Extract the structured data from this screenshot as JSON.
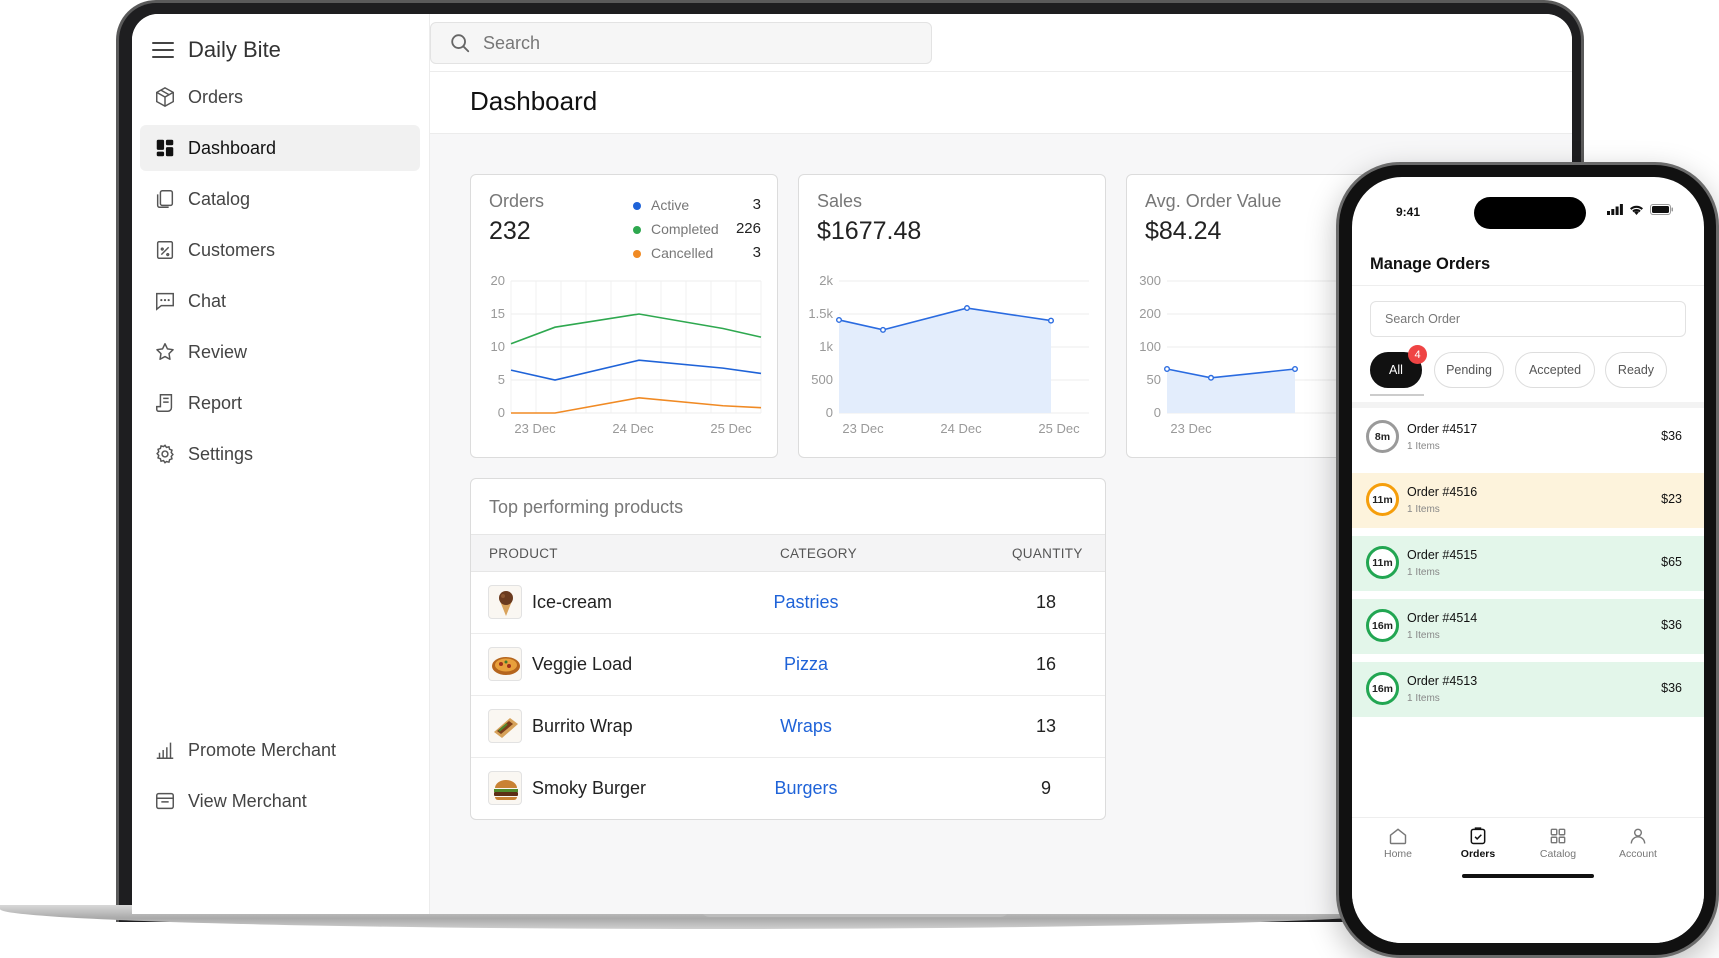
{
  "app": {
    "name": "Daily Bite"
  },
  "search": {
    "placeholder": "Search"
  },
  "sidebar": {
    "items": [
      {
        "label": "Orders",
        "icon": "box-icon"
      },
      {
        "label": "Dashboard",
        "icon": "dashboard-icon",
        "active": true
      },
      {
        "label": "Catalog",
        "icon": "catalog-icon"
      },
      {
        "label": "Customers",
        "icon": "customers-icon"
      },
      {
        "label": "Chat",
        "icon": "chat-icon"
      },
      {
        "label": "Review",
        "icon": "star-icon"
      },
      {
        "label": "Report",
        "icon": "report-icon"
      },
      {
        "label": "Settings",
        "icon": "gear-icon"
      }
    ],
    "footer": [
      {
        "label": "Promote Merchant",
        "icon": "chart-icon"
      },
      {
        "label": "View Merchant",
        "icon": "store-icon"
      }
    ]
  },
  "page": {
    "title": "Dashboard"
  },
  "cards": {
    "orders": {
      "label": "Orders",
      "value": "232",
      "legend": [
        {
          "label": "Active",
          "count": "3",
          "color": "#1f63d8"
        },
        {
          "label": "Completed",
          "count": "226",
          "color": "#2ea84f"
        },
        {
          "label": "Cancelled",
          "count": "3",
          "color": "#f08a24"
        }
      ]
    },
    "sales": {
      "label": "Sales",
      "value": "$1677.48"
    },
    "avg": {
      "label": "Avg. Order Value",
      "value": "$84.24"
    }
  },
  "chart_data": [
    {
      "type": "line",
      "x": [
        "23 Dec",
        "23 Dec",
        "24 Dec",
        "25 Dec",
        "25 Dec"
      ],
      "x_ticks": [
        "23 Dec",
        "24 Dec",
        "25 Dec"
      ],
      "y_ticks": [
        "0",
        "5",
        "10",
        "15",
        "20"
      ],
      "ylim": [
        0,
        20
      ],
      "grid": true,
      "series": [
        {
          "name": "Completed",
          "color": "#2ea84f",
          "values": [
            10.5,
            13,
            15,
            12.8,
            11.5
          ]
        },
        {
          "name": "Active",
          "color": "#1f63d8",
          "values": [
            6.5,
            5,
            8,
            6.8,
            6
          ]
        },
        {
          "name": "Cancelled",
          "color": "#f08a24",
          "values": [
            0,
            0,
            2.3,
            1.1,
            0.8
          ]
        }
      ]
    },
    {
      "type": "area",
      "x": [
        "23 Dec",
        "23 Dec",
        "24 Dec",
        "25 Dec"
      ],
      "x_ticks": [
        "23 Dec",
        "24 Dec",
        "25 Dec"
      ],
      "y_ticks": [
        "0",
        "500",
        "1k",
        "1.5k",
        "2k"
      ],
      "ylim": [
        0,
        2000
      ],
      "grid": true,
      "series": [
        {
          "color": "#2a6be0",
          "values": [
            1410,
            1260,
            1590,
            1400
          ]
        }
      ]
    },
    {
      "type": "area",
      "x": [
        "23 Dec",
        "23 Dec",
        "24 Dec"
      ],
      "x_ticks": [
        "23 Dec"
      ],
      "y_ticks": [
        "0",
        "50",
        "100",
        "200",
        "300"
      ],
      "ylim": [
        0,
        300
      ],
      "grid": true,
      "series": [
        {
          "color": "#2a6be0",
          "values": [
            100,
            80,
            100
          ]
        }
      ]
    }
  ],
  "products": {
    "title": "Top performing products",
    "columns": [
      "PRODUCT",
      "CATEGORY",
      "QUANTITY"
    ],
    "rows": [
      {
        "name": "Ice-cream",
        "category": "Pastries",
        "quantity": "18",
        "icon": "ice-cream-icon"
      },
      {
        "name": "Veggie Load",
        "category": "Pizza",
        "quantity": "16",
        "icon": "pizza-icon"
      },
      {
        "name": "Burrito Wrap",
        "category": "Wraps",
        "quantity": "13",
        "icon": "wrap-icon"
      },
      {
        "name": "Smoky Burger",
        "category": "Burgers",
        "quantity": "9",
        "icon": "burger-icon"
      }
    ]
  },
  "phone": {
    "time": "9:41",
    "title": "Manage Orders",
    "search_placeholder": "Search Order",
    "filters": [
      {
        "label": "All",
        "active": true,
        "badge": "4"
      },
      {
        "label": "Pending"
      },
      {
        "label": "Accepted"
      },
      {
        "label": "Ready"
      }
    ],
    "orders": [
      {
        "time": "8m",
        "name": "Order #4517",
        "items": "1 Items",
        "price": "$36",
        "ring": "#9a9a9a",
        "bg": "#ffffff"
      },
      {
        "time": "11m",
        "name": "Order #4516",
        "items": "1 Items",
        "price": "$23",
        "ring": "#f59e0b",
        "bg": "#fdf3dc"
      },
      {
        "time": "11m",
        "name": "Order #4515",
        "items": "1 Items",
        "price": "$65",
        "ring": "#22a652",
        "bg": "#e3f6ea"
      },
      {
        "time": "16m",
        "name": "Order #4514",
        "items": "1 Items",
        "price": "$36",
        "ring": "#22a652",
        "bg": "#e3f6ea"
      },
      {
        "time": "16m",
        "name": "Order #4513",
        "items": "1 Items",
        "price": "$36",
        "ring": "#22a652",
        "bg": "#e3f6ea"
      }
    ],
    "tabs": [
      {
        "label": "Home",
        "icon": "home-icon"
      },
      {
        "label": "Orders",
        "icon": "orders-icon",
        "active": true
      },
      {
        "label": "Catalog",
        "icon": "catalog-grid-icon"
      },
      {
        "label": "Account",
        "icon": "account-icon"
      }
    ]
  }
}
